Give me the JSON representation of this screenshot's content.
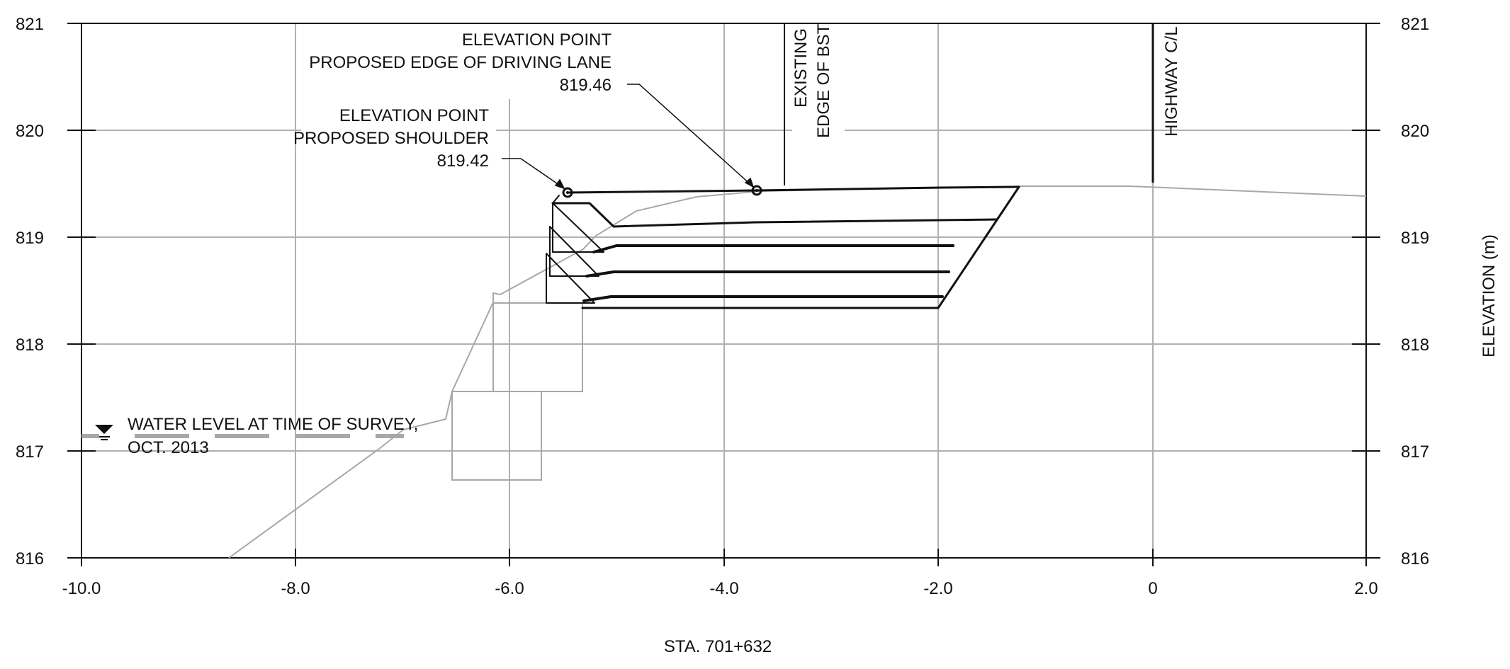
{
  "drawing": {
    "station_label": "STA. 701+632",
    "y_axis_title": "ELEVATION (m)",
    "x_axis": {
      "ticks": [
        "-10.0",
        "-8.0",
        "-6.0",
        "-4.0",
        "-2.0",
        "0",
        "2.0"
      ]
    },
    "y_axis": {
      "ticks": [
        "821",
        "820",
        "819",
        "818",
        "817",
        "816"
      ]
    },
    "callouts": {
      "driving_lane": {
        "line1": "ELEVATION POINT",
        "line2": "PROPOSED EDGE OF DRIVING LANE",
        "value": "819.46"
      },
      "shoulder": {
        "line1": "ELEVATION POINT",
        "line2": "PROPOSED SHOULDER",
        "value": "819.42"
      }
    },
    "existing_bst": {
      "line1": "EXISTING",
      "line2": "EDGE OF BST"
    },
    "highway_cl": "HIGHWAY C/L",
    "water_level": {
      "line1": "WATER LEVEL AT TIME OF SURVEY,",
      "line2": "OCT. 2013"
    }
  }
}
